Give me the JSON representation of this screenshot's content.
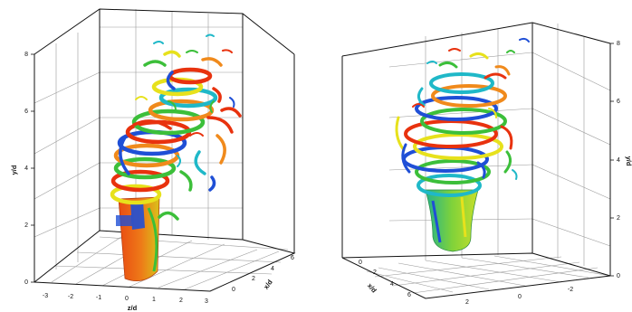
{
  "left_panel": {
    "y_axis": {
      "label": "y/d",
      "ticks": [
        "0",
        "2",
        "4",
        "6",
        "8"
      ]
    },
    "x_axis": {
      "label": "z/d",
      "ticks": [
        "-3",
        "-2",
        "-1",
        "0",
        "1",
        "2",
        "3"
      ]
    },
    "depth_axis": {
      "label": "x/d",
      "ticks": [
        "0",
        "2",
        "4",
        "6"
      ]
    }
  },
  "right_panel": {
    "y_axis": {
      "label": "y/d",
      "ticks": [
        "0",
        "2",
        "4",
        "6",
        "8"
      ]
    },
    "x_axis": {
      "ticks": [
        "2",
        "0",
        "-2"
      ]
    },
    "depth_axis": {
      "label": "x/d",
      "ticks": [
        "0",
        "2",
        "4",
        "6"
      ]
    }
  },
  "colors": {
    "red": "#e8320e",
    "orange": "#f08a1c",
    "yellow": "#e7e11c",
    "green": "#3cbf3a",
    "cyan": "#1fb8c8",
    "blue": "#1f4fd6"
  }
}
